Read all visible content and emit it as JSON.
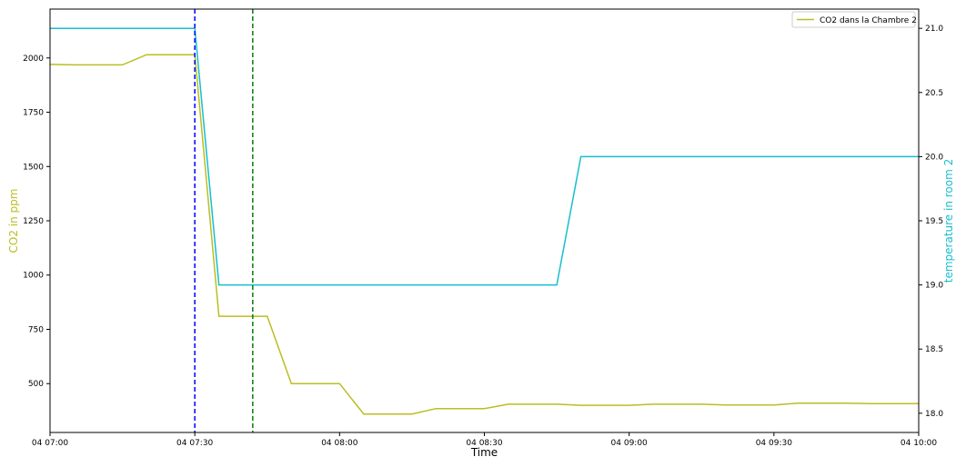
{
  "chart_data": {
    "type": "line",
    "xlabel": "Time",
    "ylabel_left": "CO2 in ppm",
    "ylabel_right": "temperature in room 2",
    "x_range": [
      "04 07:00",
      "04 10:00"
    ],
    "x_ticks": [
      "04 07:00",
      "04 07:30",
      "04 08:00",
      "04 08:30",
      "04 09:00",
      "04 09:30",
      "04 10:00"
    ],
    "y_left_range": [
      275,
      2225
    ],
    "y_left_ticks": [
      500,
      750,
      1000,
      1250,
      1500,
      1750,
      2000
    ],
    "y_right_range": [
      17.85,
      21.15
    ],
    "y_right_ticks": [
      18.0,
      18.5,
      19.0,
      19.5,
      20.0,
      20.5,
      21.0
    ],
    "y_right_tick_labels": [
      "18.0",
      "18.5",
      "19.0",
      "19.5",
      "20.0",
      "20.5",
      "21.0"
    ],
    "legend": {
      "position": "top-right",
      "entries": [
        "CO2 dans la Chambre 2"
      ]
    },
    "series": [
      {
        "name": "CO2 dans la Chambre 2",
        "axis": "left",
        "color": "#bcbd22",
        "points": [
          [
            "04 07:00",
            1970
          ],
          [
            "04 07:05",
            1968
          ],
          [
            "04 07:15",
            1968
          ],
          [
            "04 07:20",
            2015
          ],
          [
            "04 07:30",
            2015
          ],
          [
            "04 07:35",
            810
          ],
          [
            "04 07:45",
            810
          ],
          [
            "04 07:50",
            500
          ],
          [
            "04 08:00",
            500
          ],
          [
            "04 08:05",
            360
          ],
          [
            "04 08:15",
            360
          ],
          [
            "04 08:20",
            385
          ],
          [
            "04 08:30",
            385
          ],
          [
            "04 08:35",
            405
          ],
          [
            "04 08:45",
            405
          ],
          [
            "04 08:50",
            400
          ],
          [
            "04 09:00",
            400
          ],
          [
            "04 09:05",
            405
          ],
          [
            "04 09:15",
            405
          ],
          [
            "04 09:20",
            402
          ],
          [
            "04 09:30",
            402
          ],
          [
            "04 09:35",
            410
          ],
          [
            "04 09:45",
            410
          ],
          [
            "04 09:50",
            408
          ],
          [
            "04 10:00",
            408
          ]
        ]
      },
      {
        "axis": "right",
        "color": "#17becf",
        "points": [
          [
            "04 07:00",
            21.0
          ],
          [
            "04 07:30",
            21.0
          ],
          [
            "04 07:35",
            19.0
          ],
          [
            "04 08:45",
            19.0
          ],
          [
            "04 08:50",
            20.0
          ],
          [
            "04 10:00",
            20.0
          ]
        ]
      }
    ],
    "vertical_lines": [
      {
        "x": "04 07:30",
        "color": "#0000ff",
        "style": "dashed"
      },
      {
        "x": "04 07:42",
        "color": "#008000",
        "style": "dashed"
      }
    ],
    "grid": false
  }
}
